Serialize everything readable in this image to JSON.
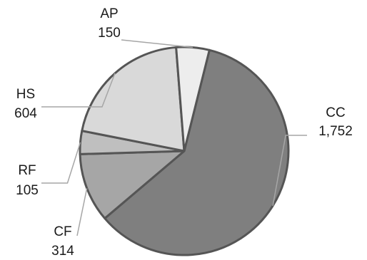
{
  "chart_data": {
    "type": "pie",
    "title": "",
    "slices": [
      {
        "label": "CC",
        "value": 1752,
        "value_text": "1,752",
        "color": "#7f7f7f"
      },
      {
        "label": "CF",
        "value": 314,
        "value_text": "314",
        "color": "#a6a6a6"
      },
      {
        "label": "RF",
        "value": 105,
        "value_text": "105",
        "color": "#bfbfbf"
      },
      {
        "label": "HS",
        "value": 604,
        "value_text": "604",
        "color": "#d9d9d9"
      },
      {
        "label": "AP",
        "value": 150,
        "value_text": "150",
        "color": "#ededed"
      }
    ],
    "legend": "none",
    "data_labels": "outside with leader lines"
  }
}
